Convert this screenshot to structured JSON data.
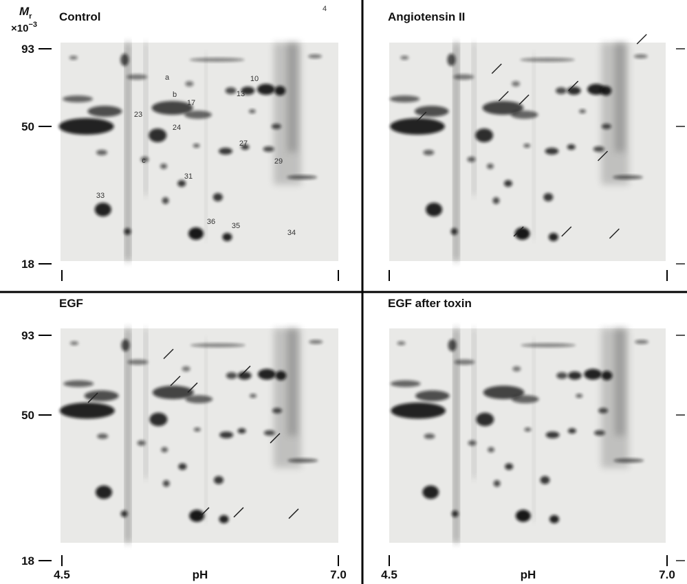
{
  "axis": {
    "mr_symbol": "M",
    "mr_subscript": "r",
    "mr_scale": "×10",
    "mr_exponent": "−3",
    "mw_ticks": [
      "93",
      "50",
      "18"
    ],
    "ph_label": "pH",
    "ph_ticks": [
      "4.5",
      "7.0"
    ]
  },
  "panels": [
    {
      "title": "Control",
      "spot_labels": [
        "4",
        "a",
        "10",
        "b",
        "17",
        "13",
        "23",
        "24",
        "27",
        "c",
        "29",
        "31",
        "33",
        "36",
        "35",
        "34"
      ]
    },
    {
      "title": "Angiotensin II"
    },
    {
      "title": "EGF"
    },
    {
      "title": "EGF after toxin"
    }
  ]
}
